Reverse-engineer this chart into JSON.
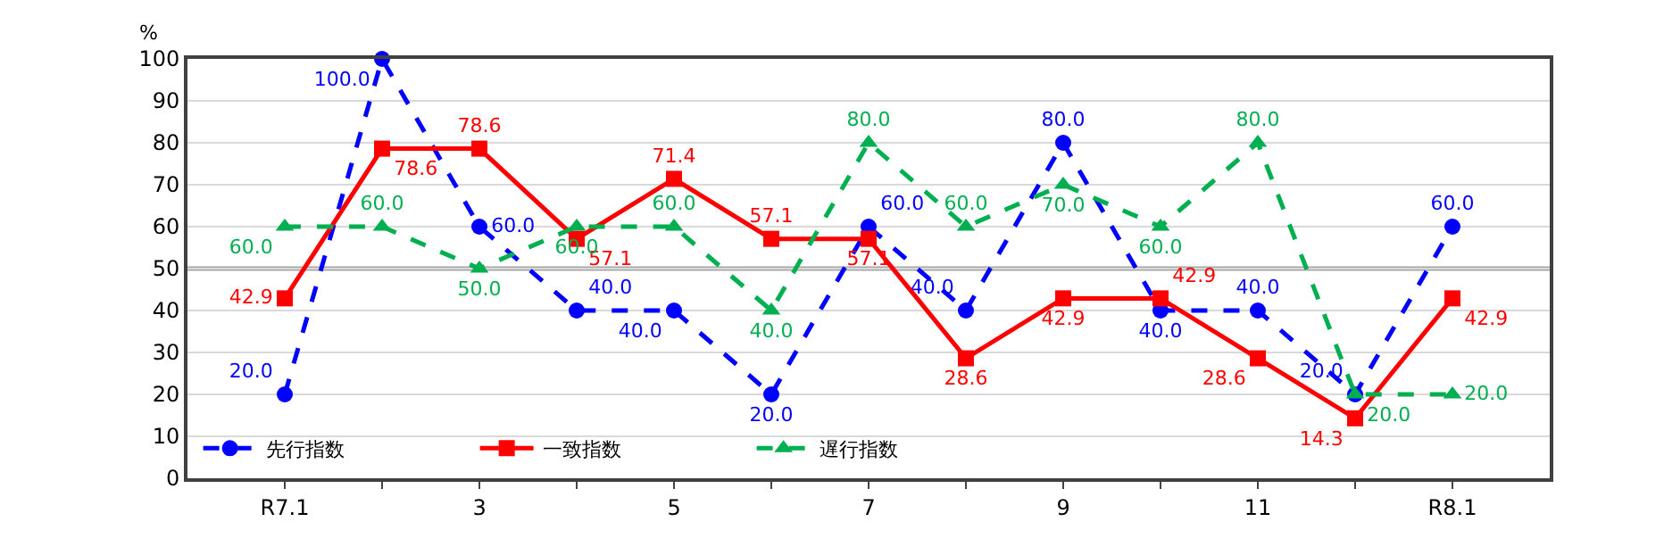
{
  "chart_data": {
    "type": "line",
    "ylabel": "%",
    "categories": [
      "R7.1",
      null,
      "3",
      null,
      "5",
      null,
      "7",
      null,
      "9",
      null,
      "11",
      null,
      "R8.1"
    ],
    "ylim": [
      0,
      100
    ],
    "yticks": [
      0,
      10,
      20,
      30,
      40,
      50,
      60,
      70,
      80,
      90,
      100
    ],
    "grid": "y",
    "legend": "bottom left",
    "ref_lines": [
      {
        "axis": "y",
        "value": 50,
        "color": "#a6a6a6"
      }
    ],
    "series": [
      {
        "name": "先行指数",
        "color": "#0000ff",
        "marker": "circle",
        "line_style": "dashed",
        "values": [
          20,
          100,
          60,
          40,
          40,
          20,
          60,
          40,
          80,
          40,
          40,
          20,
          60
        ],
        "value_labels": [
          "20.0",
          "100.0",
          "60.0",
          "40.0",
          "40.0",
          "20.0",
          "60.0",
          "40.0",
          "80.0",
          "40.0",
          "40.0",
          "20.0",
          "60.0"
        ]
      },
      {
        "name": "一致指数",
        "color": "#ff0000",
        "marker": "square",
        "line_style": "solid",
        "values": [
          42.9,
          78.6,
          78.6,
          57.1,
          71.4,
          57.1,
          57.1,
          28.6,
          42.9,
          42.9,
          28.6,
          14.3,
          42.9
        ],
        "value_labels": [
          "42.9",
          "78.6",
          "78.6",
          "57.1",
          "71.4",
          "57.1",
          "57.1",
          "28.6",
          "42.9",
          "42.9",
          "28.6",
          "14.3",
          "42.9"
        ]
      },
      {
        "name": "遅行指数",
        "color": "#00b050",
        "marker": "triangle",
        "line_style": "dashed",
        "values": [
          60,
          60,
          50,
          60,
          60,
          40,
          80,
          60,
          70,
          60,
          80,
          20,
          20
        ],
        "value_labels": [
          "60.0",
          "60.0",
          "50.0",
          "60.0",
          "60.0",
          "40.0",
          "80.0",
          "60.0",
          "70.0",
          "60.0",
          "80.0",
          "20.0",
          "20.0"
        ]
      }
    ]
  }
}
